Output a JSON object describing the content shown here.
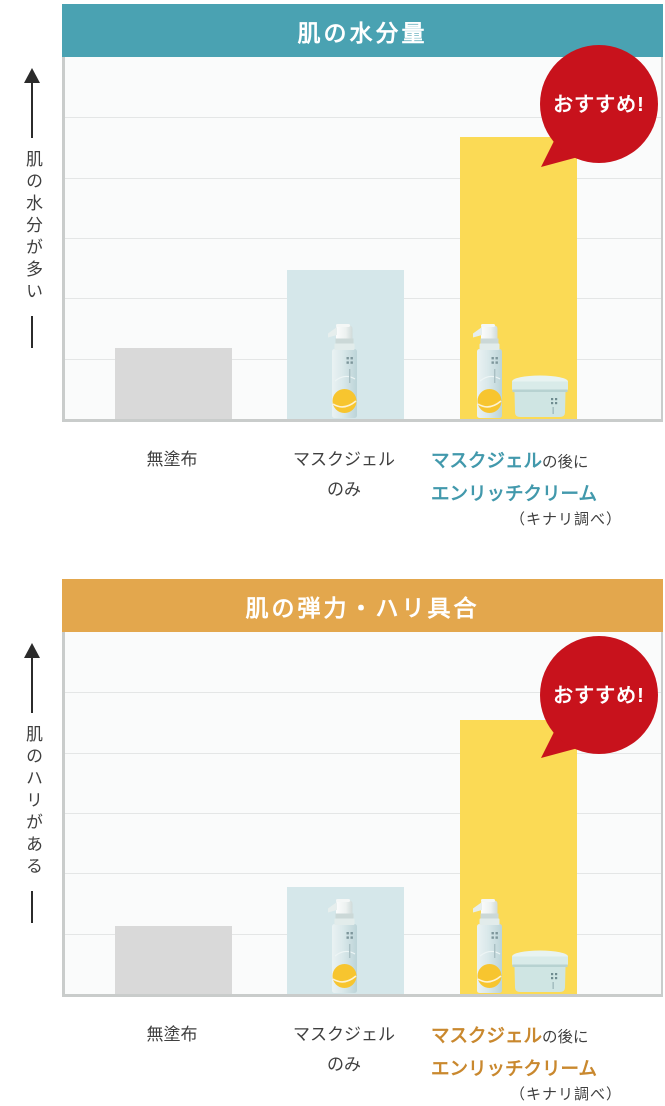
{
  "charts": [
    {
      "title": "肌の水分量",
      "header_color": "#4AA2B2",
      "axis_label": "肌の水分が多い",
      "badge_label": "おすすめ!",
      "badge_color": "#C8121C",
      "note": "（キナリ調べ）",
      "highlight_color": "#4299AC",
      "bars": [
        {
          "label": "無塗布",
          "color": "#D9D9D9",
          "height_pct": 19.6
        },
        {
          "label": "マスクジェル\nのみ",
          "color": "#D5E7EA",
          "height_pct": 41.3
        },
        {
          "color": "#FBDA55",
          "height_pct": 78.0
        }
      ],
      "bar3_label": {
        "hl1": "マスクジェル",
        "plain": "の後に",
        "hl2": "エンリッチクリーム"
      }
    },
    {
      "title": "肌の弾力・ハリ具合",
      "header_color": "#E3A74D",
      "axis_label": "肌のハリがある",
      "badge_label": "おすすめ!",
      "badge_color": "#C8121C",
      "note": "（キナリ調べ）",
      "highlight_color": "#C9882E",
      "bars": [
        {
          "label": "無塗布",
          "color": "#D9D9D9",
          "height_pct": 18.9
        },
        {
          "label": "マスクジェル\nのみ",
          "color": "#D5E7EA",
          "height_pct": 29.6
        },
        {
          "color": "#FBDA55",
          "height_pct": 75.6
        }
      ],
      "bar3_label": {
        "hl1": "マスクジェル",
        "plain": "の後に",
        "hl2": "エンリッチクリーム"
      }
    }
  ],
  "chart_data": [
    {
      "type": "bar",
      "title": "肌の水分量",
      "categories": [
        "無塗布",
        "マスクジェルのみ",
        "マスクジェルの後にエンリッチクリーム"
      ],
      "values": [
        1.2,
        2.5,
        4.7
      ],
      "value_note": "no numeric axis shown; values estimated in gridline units",
      "xlabel": "",
      "ylabel": "肌の水分が多い",
      "ylim": [
        0,
        6
      ],
      "grid": true,
      "grid_divisions": 6,
      "legend": false,
      "annotations": [
        "おすすめ!"
      ],
      "source_note": "（キナリ調べ）"
    },
    {
      "type": "bar",
      "title": "肌の弾力・ハリ具合",
      "categories": [
        "無塗布",
        "マスクジェルのみ",
        "マスクジェルの後にエンリッチクリーム"
      ],
      "values": [
        1.1,
        1.8,
        4.6
      ],
      "value_note": "no numeric axis shown; values estimated in gridline units",
      "xlabel": "",
      "ylabel": "肌のハリがある",
      "ylim": [
        0,
        6
      ],
      "grid": true,
      "grid_divisions": 6,
      "legend": false,
      "annotations": [
        "おすすめ!"
      ],
      "source_note": "（キナリ調べ）"
    }
  ]
}
